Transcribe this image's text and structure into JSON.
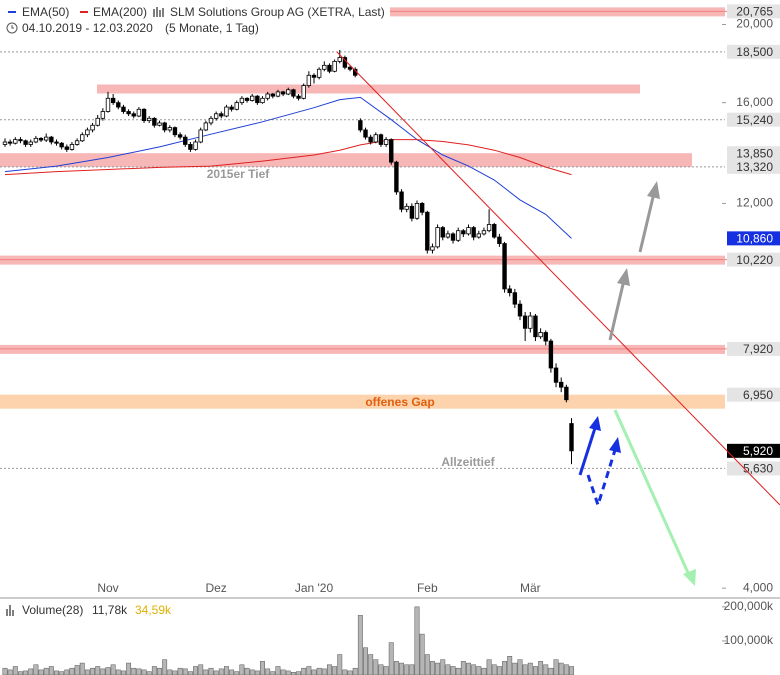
{
  "chart_data": {
    "type": "candlestick",
    "log_scale": true,
    "title": "SLM Solutions Group AG (XETRA, Last)",
    "subtitle": "04.10.2019 - 12.03.2020",
    "period": "(5 Monate, 1 Tag)",
    "categories": [
      null,
      null,
      null,
      null,
      null,
      null,
      null,
      null,
      null,
      null,
      null,
      null,
      null,
      null,
      null,
      null,
      null,
      null,
      null,
      null,
      "Nov",
      null,
      null,
      null,
      null,
      null,
      null,
      null,
      null,
      null,
      null,
      null,
      null,
      null,
      null,
      null,
      null,
      null,
      null,
      null,
      null,
      "Dez",
      null,
      null,
      null,
      null,
      null,
      null,
      null,
      null,
      null,
      null,
      null,
      null,
      null,
      null,
      null,
      null,
      null,
      null,
      "Jan '20",
      null,
      null,
      null,
      null,
      null,
      null,
      null,
      null,
      null,
      null,
      null,
      null,
      null,
      null,
      null,
      null,
      null,
      null,
      null,
      null,
      null,
      "Feb",
      null,
      null,
      null,
      null,
      null,
      null,
      null,
      null,
      null,
      null,
      null,
      null,
      null,
      null,
      null,
      null,
      null,
      null,
      null,
      "Mär",
      null,
      null,
      null,
      null,
      null,
      null,
      null,
      null
    ],
    "candles": [
      [
        14200,
        14450,
        14100,
        14300
      ],
      [
        14300,
        14400,
        14150,
        14250
      ],
      [
        14250,
        14500,
        14200,
        14400
      ],
      [
        14400,
        14500,
        14250,
        14350
      ],
      [
        14350,
        14400,
        14100,
        14200
      ],
      [
        14200,
        14400,
        14100,
        14300
      ],
      [
        14300,
        14550,
        14250,
        14450
      ],
      [
        14450,
        14500,
        14300,
        14380
      ],
      [
        14380,
        14650,
        14300,
        14500
      ],
      [
        14500,
        14550,
        14200,
        14300
      ],
      [
        14300,
        14400,
        14150,
        14250
      ],
      [
        14250,
        14300,
        14000,
        14100
      ],
      [
        14100,
        14200,
        13900,
        14000
      ],
      [
        14000,
        14300,
        13950,
        14200
      ],
      [
        14200,
        14450,
        14150,
        14350
      ],
      [
        14350,
        14700,
        14300,
        14600
      ],
      [
        14600,
        14900,
        14500,
        14800
      ],
      [
        14800,
        15100,
        14700,
        15000
      ],
      [
        15000,
        15450,
        14950,
        15300
      ],
      [
        15300,
        15750,
        15200,
        15600
      ],
      [
        15600,
        16500,
        15550,
        16200
      ],
      [
        16200,
        16400,
        15900,
        16000
      ],
      [
        16000,
        16100,
        15700,
        15800
      ],
      [
        15800,
        15900,
        15500,
        15600
      ],
      [
        15600,
        15700,
        15400,
        15500
      ],
      [
        15500,
        15600,
        15300,
        15400
      ],
      [
        15400,
        15800,
        15350,
        15700
      ],
      [
        15700,
        15750,
        15100,
        15200
      ],
      [
        15200,
        15400,
        15100,
        15300
      ],
      [
        15300,
        15350,
        14900,
        15000
      ],
      [
        15000,
        15200,
        14950,
        15100
      ],
      [
        15100,
        15150,
        14700,
        14800
      ],
      [
        14800,
        15000,
        14700,
        14900
      ],
      [
        14900,
        14950,
        14500,
        14600
      ],
      [
        14600,
        14700,
        14400,
        14500
      ],
      [
        14500,
        14600,
        14100,
        14200
      ],
      [
        14200,
        14300,
        13900,
        14000
      ],
      [
        14000,
        14400,
        13950,
        14300
      ],
      [
        14300,
        14900,
        14250,
        14800
      ],
      [
        14800,
        15200,
        14750,
        15100
      ],
      [
        15100,
        15400,
        15000,
        15300
      ],
      [
        15300,
        15600,
        15200,
        15500
      ],
      [
        15500,
        15600,
        15300,
        15400
      ],
      [
        15400,
        15900,
        15350,
        15800
      ],
      [
        15800,
        15900,
        15600,
        15700
      ],
      [
        15700,
        16100,
        15650,
        16000
      ],
      [
        16000,
        16300,
        15900,
        16200
      ],
      [
        16200,
        16250,
        16000,
        16100
      ],
      [
        16100,
        16400,
        16050,
        16300
      ],
      [
        16300,
        16350,
        15900,
        16000
      ],
      [
        16000,
        16300,
        15950,
        16200
      ],
      [
        16200,
        16500,
        16100,
        16400
      ],
      [
        16400,
        16450,
        16200,
        16300
      ],
      [
        16300,
        16600,
        16250,
        16500
      ],
      [
        16500,
        16550,
        16300,
        16400
      ],
      [
        16400,
        16700,
        16350,
        16600
      ],
      [
        16600,
        16650,
        16200,
        16300
      ],
      [
        16300,
        16400,
        16100,
        16200
      ],
      [
        16200,
        16900,
        16150,
        16800
      ],
      [
        16800,
        17500,
        16700,
        17300
      ],
      [
        17300,
        17400,
        16900,
        17200
      ],
      [
        17200,
        17700,
        17100,
        17600
      ],
      [
        17600,
        18000,
        17500,
        17800
      ],
      [
        17800,
        17900,
        17400,
        17500
      ],
      [
        17500,
        18100,
        17450,
        18000
      ],
      [
        18000,
        18600,
        17900,
        18200
      ],
      [
        18200,
        18300,
        17600,
        17700
      ],
      [
        17700,
        17800,
        17500,
        17600
      ],
      [
        17600,
        17700,
        17200,
        17300
      ],
      [
        15200,
        15300,
        14700,
        14800
      ],
      [
        14800,
        14900,
        14400,
        14500
      ],
      [
        14500,
        14600,
        14200,
        14300
      ],
      [
        14300,
        14700,
        14250,
        14600
      ],
      [
        14600,
        14650,
        14100,
        14200
      ],
      [
        14200,
        14500,
        14100,
        14400
      ],
      [
        14400,
        14450,
        13400,
        13500
      ],
      [
        13500,
        13550,
        12300,
        12400
      ],
      [
        12400,
        12500,
        11700,
        11800
      ],
      [
        11800,
        12000,
        11700,
        11900
      ],
      [
        11900,
        12000,
        11400,
        11500
      ],
      [
        11500,
        12100,
        11450,
        12000
      ],
      [
        12000,
        12050,
        11600,
        11700
      ],
      [
        11700,
        11750,
        10400,
        10500
      ],
      [
        10500,
        10700,
        10400,
        10600
      ],
      [
        10600,
        11300,
        10550,
        11200
      ],
      [
        11200,
        11250,
        10800,
        10900
      ],
      [
        10900,
        11100,
        10850,
        11000
      ],
      [
        11000,
        11050,
        10700,
        10800
      ],
      [
        10800,
        11200,
        10750,
        11100
      ],
      [
        11100,
        11150,
        10900,
        11000
      ],
      [
        11000,
        11300,
        10950,
        11200
      ],
      [
        11200,
        11250,
        10800,
        10900
      ],
      [
        10900,
        11100,
        10850,
        11000
      ],
      [
        11000,
        11200,
        10950,
        11100
      ],
      [
        11100,
        11800,
        11050,
        11300
      ],
      [
        11300,
        11350,
        10850,
        10900
      ],
      [
        10900,
        11000,
        10600,
        10700
      ],
      [
        10700,
        10750,
        9300,
        9400
      ],
      [
        9400,
        9500,
        9200,
        9300
      ],
      [
        9300,
        9400,
        8900,
        9000
      ],
      [
        9000,
        9100,
        8600,
        8700
      ],
      [
        8700,
        8800,
        8100,
        8400
      ],
      [
        8400,
        8800,
        8300,
        8700
      ],
      [
        8700,
        8750,
        8100,
        8200
      ],
      [
        8200,
        8400,
        8150,
        8300
      ],
      [
        8300,
        8350,
        8000,
        8100
      ],
      [
        8100,
        8150,
        7400,
        7500
      ],
      [
        7500,
        7600,
        7100,
        7200
      ],
      [
        7200,
        7300,
        7000,
        7100
      ],
      [
        7100,
        7150,
        6800,
        6850
      ],
      [
        6400,
        6500,
        5700,
        5920
      ]
    ],
    "series": [
      {
        "name": "EMA(50)",
        "color": "#1f3fd6",
        "x": [
          0,
          10,
          20,
          30,
          40,
          50,
          60,
          65,
          69,
          75,
          80,
          85,
          90,
          95,
          100,
          105,
          110
        ],
        "values": [
          13140,
          13350,
          13680,
          14100,
          14620,
          15150,
          15770,
          16140,
          16240,
          15240,
          14400,
          13780,
          13350,
          12830,
          12120,
          11630,
          10860
        ]
      },
      {
        "name": "EMA(200)",
        "color": "#e02020",
        "x": [
          0,
          10,
          20,
          30,
          40,
          50,
          60,
          65,
          69,
          75,
          80,
          85,
          90,
          95,
          100,
          105,
          110
        ],
        "values": [
          13030,
          13140,
          13220,
          13300,
          13350,
          13540,
          13780,
          13970,
          14180,
          14400,
          14400,
          14320,
          14180,
          13970,
          13680,
          13310,
          13030
        ]
      }
    ],
    "ylim": [
      3900,
      21450
    ],
    "yticks": [
      {
        "value": 4000,
        "label": "4,000"
      },
      {
        "value": 12000,
        "label": "12,000"
      },
      {
        "value": 16000,
        "label": "16,000"
      },
      {
        "value": 20000,
        "label": "20,000"
      }
    ],
    "levels": [
      {
        "value": 20765,
        "label": "20,765",
        "kind": "band",
        "color": "#f7b7b7"
      },
      {
        "value": 18500,
        "label": "18,500",
        "kind": "line",
        "color": "#999999"
      },
      {
        "value": 16660,
        "kind": "band",
        "color": "#f7b7b7"
      },
      {
        "value": 15240,
        "label": "15,240",
        "kind": "line",
        "color": "#999999"
      },
      {
        "value": 13850,
        "label": "13,850",
        "kind": "band",
        "color": "#f7b7b7"
      },
      {
        "value": 13320,
        "label": "13,320",
        "kind": "line",
        "color": "#999999"
      },
      {
        "value": 10860,
        "label": "10,860",
        "kind": "box",
        "color": "#1530e0"
      },
      {
        "value": 10220,
        "label": "10,220",
        "kind": "band",
        "color": "#f7b7b7"
      },
      {
        "value": 7920,
        "label": "7,920",
        "kind": "band",
        "color": "#f7b7b7"
      },
      {
        "value": 6950,
        "label": "6,950",
        "kind": "band",
        "color": "#fcd3ac"
      },
      {
        "value": 5920,
        "label": "5,920",
        "kind": "box",
        "color": "#000000"
      },
      {
        "value": 5630,
        "label": "5,630",
        "kind": "line",
        "color": "#999999"
      }
    ],
    "annotations": [
      "2015er Tief",
      "offenes Gap",
      "Allzeittief"
    ],
    "volume": {
      "type": "bar",
      "label": "Volume(28)",
      "stats": [
        "11,78k",
        "34,59k"
      ],
      "color": "#b5b5b5",
      "values": [
        20000,
        15000,
        25000,
        10000,
        12000,
        18000,
        30000,
        15000,
        20000,
        25000,
        12000,
        10000,
        15000,
        20000,
        28000,
        35000,
        15000,
        20000,
        25000,
        18000,
        22000,
        30000,
        15000,
        12000,
        35000,
        20000,
        18000,
        15000,
        10000,
        25000,
        20000,
        45000,
        15000,
        12000,
        20000,
        18000,
        10000,
        25000,
        30000,
        15000,
        20000,
        12000,
        18000,
        25000,
        15000,
        10000,
        30000,
        20000,
        15000,
        12000,
        40000,
        18000,
        10000,
        25000,
        15000,
        12000,
        8000,
        10000,
        20000,
        25000,
        15000,
        20000,
        18000,
        30000,
        25000,
        60000,
        15000,
        12000,
        20000,
        175000,
        80000,
        60000,
        45000,
        30000,
        25000,
        95000,
        40000,
        35000,
        30000,
        30000,
        200000,
        120000,
        60000,
        40000,
        35000,
        45000,
        30000,
        25000,
        20000,
        40000,
        35000,
        30000,
        25000,
        20000,
        45000,
        30000,
        25000,
        40000,
        55000,
        35000,
        45000,
        30000,
        35000,
        25000,
        40000,
        30000,
        20000,
        45000,
        35000,
        30000,
        25000
      ],
      "ylim": [
        0,
        226000
      ],
      "yticks": [
        {
          "value": 100000,
          "label": "100,000k"
        },
        {
          "value": 200000,
          "label": "200,000k"
        }
      ]
    }
  }
}
